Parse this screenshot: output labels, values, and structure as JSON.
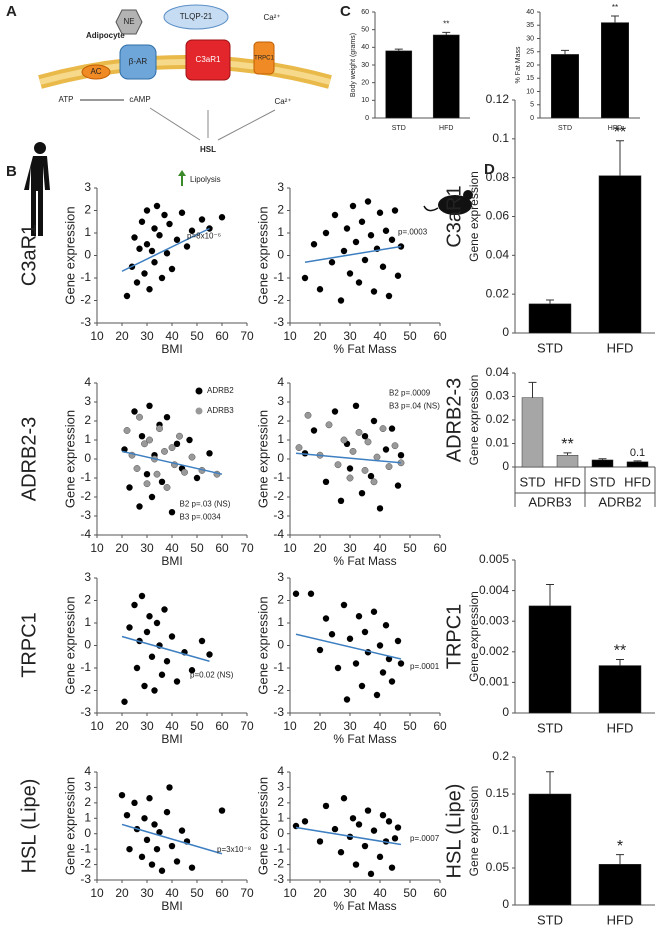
{
  "panel_labels": [
    "A",
    "B",
    "C",
    "D"
  ],
  "row_labels": [
    "C3aR1",
    "ADRB2-3",
    "TRPC1",
    "HSL (Lipe)"
  ],
  "diagram": {
    "cell": "Adipocyte",
    "ne": "NE",
    "peptide": "TLQP-21",
    "ca_out": "Ca²⁺",
    "bar": "β-AR",
    "c3ar1": "C3aR1",
    "trpc1": "TRPC1",
    "ac": "AC",
    "atp": "ATP",
    "camp": "cAMP",
    "ca_in": "Ca²⁺",
    "hsl": "HSL",
    "lipolysis": "Lipolysis"
  },
  "chart_data": [
    {
      "type": "bar",
      "ylabel": "Body weight (grams)",
      "categories": [
        "STD",
        "HFD"
      ],
      "values": [
        38,
        47
      ],
      "errors": [
        1,
        1.5
      ],
      "colors": [
        "#000000",
        "#000000"
      ],
      "annotations": [
        null,
        "**"
      ],
      "ylim": [
        0,
        60
      ],
      "yticks": [
        0,
        10,
        20,
        30,
        40,
        50,
        60
      ]
    },
    {
      "type": "bar",
      "ylabel": "% Fat Mass",
      "categories": [
        "STD",
        "HFD"
      ],
      "values": [
        24,
        36
      ],
      "errors": [
        1.5,
        2.5
      ],
      "colors": [
        "#000000",
        "#000000"
      ],
      "annotations": [
        null,
        "**"
      ],
      "ylim": [
        0,
        40
      ],
      "yticks": [
        0,
        5,
        10,
        15,
        20,
        25,
        30,
        35,
        40
      ]
    },
    {
      "type": "scatter",
      "xlabel": "BMI",
      "ylabel": "Gene expression",
      "xlim": [
        10,
        70
      ],
      "xticks": [
        10,
        20,
        30,
        40,
        50,
        60,
        70
      ],
      "ylim": [
        -3,
        3
      ],
      "yticks": [
        -3,
        -2,
        -1,
        0,
        1,
        2,
        3
      ],
      "series": [
        {
          "color": "#000000",
          "x": [
            22,
            24,
            25,
            26,
            27,
            28,
            29,
            30,
            30,
            31,
            32,
            33,
            33,
            34,
            35,
            36,
            37,
            38,
            39,
            40,
            42,
            44,
            46,
            48,
            52,
            55,
            60
          ],
          "y": [
            -1.8,
            -0.5,
            0.8,
            -1.2,
            0.3,
            1.5,
            -0.8,
            0.5,
            2.0,
            -1.5,
            0.2,
            1.2,
            -0.3,
            2.2,
            0.9,
            -1.0,
            1.8,
            0.1,
            1.4,
            -0.6,
            0.7,
            1.9,
            0.4,
            1.1,
            1.6,
            1.2,
            1.7
          ]
        }
      ],
      "fit": {
        "x": [
          20,
          55
        ],
        "y": [
          -0.7,
          1.2
        ]
      },
      "annotations": [
        "p=8x10⁻⁶"
      ]
    },
    {
      "type": "scatter",
      "xlabel": "% Fat Mass",
      "ylabel": "Gene expression",
      "xlim": [
        10,
        60
      ],
      "xticks": [
        10,
        20,
        30,
        40,
        50,
        60
      ],
      "ylim": [
        -3,
        3
      ],
      "yticks": [
        -3,
        -2,
        -1,
        0,
        1,
        2,
        3
      ],
      "series": [
        {
          "color": "#000000",
          "x": [
            15,
            18,
            20,
            22,
            24,
            25,
            27,
            28,
            29,
            30,
            31,
            32,
            33,
            34,
            35,
            36,
            37,
            38,
            39,
            40,
            41,
            42,
            43,
            44,
            45,
            46,
            47
          ],
          "y": [
            -1.0,
            0.5,
            -1.5,
            1.0,
            -0.3,
            1.8,
            -2.0,
            0.2,
            1.2,
            -0.8,
            2.2,
            0.6,
            -1.2,
            1.5,
            -0.2,
            2.4,
            0.9,
            -1.6,
            0.3,
            1.9,
            -0.5,
            1.1,
            -1.8,
            0.7,
            2.0,
            -0.9,
            0.4
          ]
        }
      ],
      "fit": {
        "x": [
          15,
          47
        ],
        "y": [
          -0.3,
          0.4
        ]
      },
      "annotations": [
        "p=.0003"
      ]
    },
    {
      "type": "scatter",
      "xlabel": "BMI",
      "ylabel": "Gene expression",
      "xlim": [
        10,
        70
      ],
      "xticks": [
        10,
        20,
        30,
        40,
        50,
        60,
        70
      ],
      "ylim": [
        -4,
        4
      ],
      "yticks": [
        -4,
        -3,
        -2,
        -1,
        0,
        1,
        2,
        3,
        4
      ],
      "legend": "upper right",
      "series": [
        {
          "name": "ADRB2",
          "color": "#000000",
          "x": [
            21,
            23,
            25,
            27,
            28,
            30,
            31,
            32,
            33,
            35,
            36,
            38,
            40,
            42,
            44,
            47,
            50,
            55
          ],
          "y": [
            0.5,
            -1.5,
            2.5,
            -2.5,
            1.2,
            -0.8,
            2.8,
            -2.0,
            0.2,
            1.8,
            -1.2,
            2.2,
            -2.8,
            0.8,
            -0.5,
            1.0,
            -1.0,
            0.3
          ]
        },
        {
          "name": "ADRB3",
          "color": "#999999",
          "x": [
            22,
            24,
            26,
            27,
            29,
            30,
            31,
            33,
            34,
            35,
            37,
            38,
            40,
            41,
            43,
            45,
            48,
            52,
            58
          ],
          "y": [
            1.5,
            0.2,
            -0.5,
            2.2,
            0.8,
            -1.3,
            1.0,
            0.0,
            -0.8,
            1.6,
            0.4,
            -1.5,
            0.6,
            -0.3,
            1.2,
            -0.7,
            0.1,
            -0.6,
            -0.8
          ]
        }
      ],
      "fit": {
        "x": [
          20,
          60
        ],
        "y": [
          0.4,
          -0.8
        ]
      },
      "annotations": [
        "B2 p=.03 (NS)",
        "B3 p=.0034"
      ]
    },
    {
      "type": "scatter",
      "xlabel": "% Fat Mass",
      "ylabel": "Gene expression",
      "xlim": [
        10,
        60
      ],
      "xticks": [
        10,
        20,
        30,
        40,
        50,
        60
      ],
      "ylim": [
        -4,
        4
      ],
      "yticks": [
        -4,
        -3,
        -2,
        -1,
        0,
        1,
        2,
        3,
        4
      ],
      "series": [
        {
          "color": "#000000",
          "x": [
            15,
            18,
            22,
            25,
            27,
            29,
            30,
            32,
            34,
            35,
            37,
            38,
            40,
            42,
            44,
            46,
            47
          ],
          "y": [
            0.3,
            1.5,
            -1.2,
            2.5,
            -2.2,
            0.8,
            -0.5,
            2.8,
            -1.8,
            1.2,
            -0.9,
            2.0,
            -2.6,
            0.5,
            1.6,
            -1.4,
            0.2
          ]
        },
        {
          "color": "#999999",
          "x": [
            13,
            16,
            20,
            23,
            26,
            28,
            30,
            31,
            33,
            35,
            36,
            38,
            39,
            41,
            43,
            45,
            47
          ],
          "y": [
            0.6,
            2.3,
            0.2,
            1.8,
            -0.3,
            1.0,
            -1.0,
            0.4,
            1.4,
            -0.6,
            0.9,
            -1.2,
            0.1,
            1.6,
            -0.4,
            0.7,
            -0.2
          ]
        }
      ],
      "fit": {
        "x": [
          12,
          47
        ],
        "y": [
          0.3,
          -0.2
        ]
      },
      "annotations": [
        "B2 p=.0009",
        "B3 p=.04 (NS)"
      ]
    },
    {
      "type": "scatter",
      "xlabel": "BMI",
      "ylabel": "Gene expression",
      "xlim": [
        10,
        70
      ],
      "xticks": [
        10,
        20,
        30,
        40,
        50,
        60,
        70
      ],
      "ylim": [
        -3,
        3
      ],
      "yticks": [
        -3,
        -2,
        -1,
        0,
        1,
        2,
        3
      ],
      "series": [
        {
          "color": "#000000",
          "x": [
            21,
            23,
            25,
            26,
            27,
            28,
            29,
            30,
            31,
            32,
            33,
            34,
            35,
            36,
            37,
            38,
            40,
            42,
            45,
            48,
            52,
            55
          ],
          "y": [
            -2.5,
            0.8,
            1.8,
            -1.0,
            0.2,
            2.2,
            -1.8,
            0.6,
            1.3,
            -0.5,
            -2.0,
            1.0,
            0.0,
            -1.3,
            1.6,
            -0.7,
            0.4,
            -1.6,
            -0.3,
            -1.1,
            0.2,
            -0.4
          ]
        }
      ],
      "fit": {
        "x": [
          20,
          55
        ],
        "y": [
          0.4,
          -0.7
        ]
      },
      "annotations": [
        "p=0.02 (NS)"
      ]
    },
    {
      "type": "scatter",
      "xlabel": "% Fat Mass",
      "ylabel": "Gene expression",
      "xlim": [
        10,
        60
      ],
      "xticks": [
        10,
        20,
        30,
        40,
        50,
        60
      ],
      "ylim": [
        -3,
        3
      ],
      "yticks": [
        -3,
        -2,
        -1,
        0,
        1,
        2,
        3
      ],
      "series": [
        {
          "color": "#000000",
          "x": [
            12,
            17,
            20,
            22,
            24,
            26,
            28,
            29,
            30,
            32,
            33,
            34,
            35,
            36,
            38,
            39,
            40,
            41,
            42,
            43,
            44,
            46,
            47
          ],
          "y": [
            2.3,
            2.3,
            -0.2,
            1.2,
            0.5,
            -1.0,
            1.8,
            -2.4,
            0.3,
            -0.8,
            1.3,
            -1.8,
            0.6,
            -0.3,
            1.5,
            -2.2,
            0.0,
            -1.2,
            0.9,
            -0.6,
            -1.6,
            0.2,
            -0.8
          ]
        }
      ],
      "fit": {
        "x": [
          12,
          47
        ],
        "y": [
          0.5,
          -0.6
        ]
      },
      "annotations": [
        "p=.0001"
      ]
    },
    {
      "type": "scatter",
      "xlabel": "BMI",
      "ylabel": "Gene expression",
      "xlim": [
        10,
        70
      ],
      "xticks": [
        10,
        20,
        30,
        40,
        50,
        60,
        70
      ],
      "ylim": [
        -3,
        4
      ],
      "yticks": [
        -3,
        -2,
        -1,
        0,
        1,
        2,
        3,
        4
      ],
      "series": [
        {
          "color": "#000000",
          "x": [
            20,
            22,
            23,
            25,
            26,
            28,
            29,
            30,
            31,
            32,
            33,
            34,
            35,
            36,
            38,
            39,
            40,
            42,
            44,
            46,
            48,
            60
          ],
          "y": [
            2.5,
            1.2,
            -1.0,
            2.0,
            0.3,
            -1.5,
            1.0,
            -0.4,
            2.3,
            -2.0,
            0.6,
            -1.0,
            0.1,
            -2.4,
            1.4,
            3.0,
            -0.8,
            -1.8,
            0.2,
            -0.5,
            -2.2,
            1.5
          ]
        }
      ],
      "fit": {
        "x": [
          20,
          60
        ],
        "y": [
          0.6,
          -1.3
        ]
      },
      "annotations": [
        "p=3x10⁻⁸"
      ]
    },
    {
      "type": "scatter",
      "xlabel": "% Fat Mass",
      "ylabel": "Gene expression",
      "xlim": [
        10,
        60
      ],
      "xticks": [
        10,
        20,
        30,
        40,
        50,
        60
      ],
      "ylim": [
        -3,
        4
      ],
      "yticks": [
        -3,
        -2,
        -1,
        0,
        1,
        2,
        3,
        4
      ],
      "series": [
        {
          "color": "#000000",
          "x": [
            12,
            15,
            20,
            22,
            25,
            27,
            28,
            30,
            31,
            32,
            33,
            35,
            36,
            37,
            38,
            40,
            41,
            42,
            43,
            44,
            45,
            46
          ],
          "y": [
            0.5,
            0.8,
            -0.5,
            1.8,
            0.3,
            -1.2,
            2.3,
            -0.2,
            1.0,
            -2.0,
            0.6,
            -0.8,
            1.5,
            -2.6,
            0.2,
            -1.5,
            1.2,
            -0.5,
            0.8,
            -2.2,
            -0.3,
            0.4
          ]
        }
      ],
      "fit": {
        "x": [
          12,
          47
        ],
        "y": [
          0.4,
          -0.7
        ]
      },
      "annotations": [
        "p=.0007"
      ]
    },
    {
      "type": "bar",
      "side_label": "C3aR1",
      "ylabel": "Gene expression",
      "categories": [
        "STD",
        "HFD"
      ],
      "values": [
        0.015,
        0.081
      ],
      "errors": [
        0.002,
        0.018
      ],
      "colors": [
        "#000000",
        "#000000"
      ],
      "annotations": [
        null,
        "**"
      ],
      "ylim": [
        0,
        0.12
      ],
      "yticks": [
        0,
        0.02,
        0.04,
        0.06,
        0.08,
        0.1,
        0.12
      ]
    },
    {
      "type": "bar",
      "side_label": "ADRB2-3",
      "ylabel": "Gene expression",
      "categories": [
        "STD",
        "HFD",
        "STD",
        "HFD"
      ],
      "group_labels": [
        "ADRB3",
        "ADRB2"
      ],
      "values": [
        0.0295,
        0.005,
        0.003,
        0.0022
      ],
      "errors": [
        0.0065,
        0.001,
        0.0005,
        0.0004
      ],
      "colors": [
        "#a6a6a6",
        "#a6a6a6",
        "#000000",
        "#000000"
      ],
      "annotations": [
        null,
        "**",
        null,
        "0.1"
      ],
      "ylim": [
        0,
        0.04
      ],
      "yticks": [
        0,
        0.01,
        0.02,
        0.03,
        0.04
      ]
    },
    {
      "type": "bar",
      "side_label": "TRPC1",
      "ylabel": "Gene expression",
      "categories": [
        "STD",
        "HFD"
      ],
      "values": [
        0.0035,
        0.00155
      ],
      "errors": [
        0.0007,
        0.0002
      ],
      "colors": [
        "#000000",
        "#000000"
      ],
      "annotations": [
        null,
        "**"
      ],
      "ylim": [
        0,
        0.005
      ],
      "yticks": [
        0,
        0.001,
        0.002,
        0.003,
        0.004,
        0.005
      ]
    },
    {
      "type": "bar",
      "side_label": "HSL (Lipe)",
      "ylabel": "Gene expression",
      "categories": [
        "STD",
        "HFD"
      ],
      "values": [
        0.15,
        0.055
      ],
      "errors": [
        0.03,
        0.013
      ],
      "colors": [
        "#000000",
        "#000000"
      ],
      "annotations": [
        null,
        "*"
      ],
      "ylim": [
        0,
        0.2
      ],
      "yticks": [
        0,
        0.05,
        0.1,
        0.15,
        0.2
      ]
    }
  ]
}
